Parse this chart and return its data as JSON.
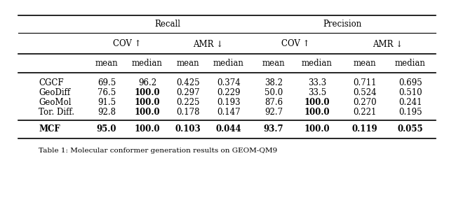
{
  "recall_label": "Recall",
  "precision_label": "Precision",
  "rows": [
    {
      "name": "CGCF",
      "values": [
        "69.5",
        "96.2",
        "0.425",
        "0.374",
        "38.2",
        "33.3",
        "0.711",
        "0.695"
      ],
      "bold": [
        false,
        false,
        false,
        false,
        false,
        false,
        false,
        false
      ],
      "name_bold": false
    },
    {
      "name": "GeoDiff",
      "values": [
        "76.5",
        "100.0",
        "0.297",
        "0.229",
        "50.0",
        "33.5",
        "0.524",
        "0.510"
      ],
      "bold": [
        false,
        true,
        false,
        false,
        false,
        false,
        false,
        false
      ],
      "name_bold": false
    },
    {
      "name": "GeoMol",
      "values": [
        "91.5",
        "100.0",
        "0.225",
        "0.193",
        "87.6",
        "100.0",
        "0.270",
        "0.241"
      ],
      "bold": [
        false,
        true,
        false,
        false,
        false,
        true,
        false,
        false
      ],
      "name_bold": false
    },
    {
      "name": "Tor. Diff.",
      "values": [
        "92.8",
        "100.0",
        "0.178",
        "0.147",
        "92.7",
        "100.0",
        "0.221",
        "0.195"
      ],
      "bold": [
        false,
        true,
        false,
        false,
        false,
        true,
        false,
        false
      ],
      "name_bold": false
    },
    {
      "name": "MCF",
      "values": [
        "95.0",
        "100.0",
        "0.103",
        "0.044",
        "93.7",
        "100.0",
        "0.119",
        "0.055"
      ],
      "bold": [
        true,
        true,
        true,
        true,
        true,
        true,
        true,
        true
      ],
      "name_bold": true
    }
  ],
  "col_labels": [
    "mean",
    "median",
    "mean",
    "median",
    "mean",
    "median",
    "mean",
    "median"
  ],
  "subgroup_labels": [
    "COV ↑",
    "AMR ↓",
    "COV ↑",
    "AMR ↓"
  ],
  "caption": "Table 1: Molecular conformer generation results on GEOM-QM9",
  "bg_color": "#ffffff",
  "text_color": "#000000",
  "font_family": "DejaVu Serif",
  "font_size": 8.5,
  "caption_font_size": 7.5
}
